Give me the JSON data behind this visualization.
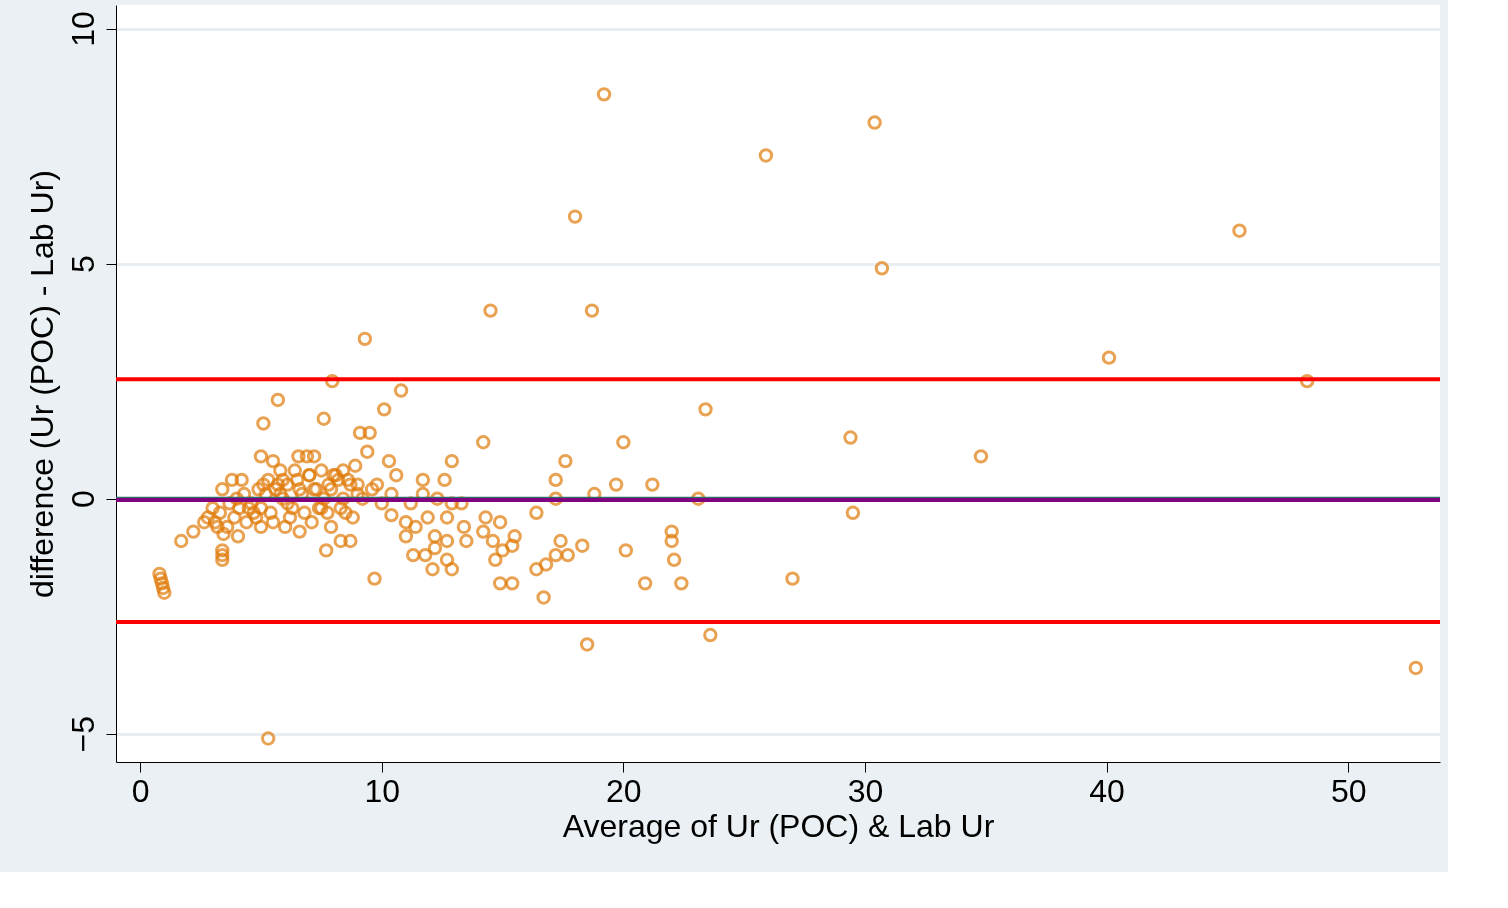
{
  "chart_data": {
    "type": "scatter",
    "xlabel": "Average of Ur (POC) & Lab Ur",
    "ylabel": "difference (Ur (POC) - Lab Ur)",
    "series": [
      {
        "color": "#e07b0a",
        "marker": "circle",
        "x": [
          19.2,
          30.4,
          25.9,
          18.0,
          45.5,
          30.7,
          14.5,
          18.7,
          9.3,
          40.1,
          48.3,
          7.95,
          10.8,
          5.7,
          5.1,
          7.6,
          10.1,
          23.4,
          9.1,
          9.5,
          14.2,
          20.0,
          29.4,
          34.8,
          17.6,
          12.9,
          10.3,
          10.6,
          17.2,
          19.7,
          21.2,
          11.7,
          12.6,
          18.8,
          17.2,
          23.1,
          16.4,
          29.5,
          22.0,
          22.0,
          22.1,
          20.1,
          18.3,
          17.4,
          17.2,
          17.7,
          16.8,
          16.4,
          16.7,
          20.9,
          22.4,
          27.0,
          23.6,
          18.5,
          52.8,
          5.3,
          9.7,
          7.7,
          8.3,
          8.7,
          14.3,
          14.9,
          14.2,
          13.4,
          13.5,
          15.5,
          15.4,
          14.7,
          15.0,
          14.6,
          14.9,
          15.4,
          12.1,
          11.3,
          12.9,
          12.7,
          11.8,
          12.2,
          12.7,
          11.0,
          12.2,
          13.3,
          12.7,
          10.4,
          11.0,
          11.4,
          11.2,
          11.7,
          12.3,
          12.9,
          11.9,
          0.8,
          0.85,
          0.9,
          0.95,
          1.0,
          3.4,
          3.4,
          3.4,
          1.7,
          2.2,
          2.65,
          3.0,
          3.4,
          3.8,
          4.2,
          5.0,
          5.5,
          5.8,
          6.55,
          7.2,
          6.9,
          8.4,
          8.9,
          9.4,
          9.6,
          10.4,
          7.75,
          7.9,
          6.6,
          6.0,
          4.05,
          3.45,
          2.8,
          3.1,
          3.3,
          3.6,
          3.9,
          4.1,
          4.4,
          4.6,
          4.8,
          5.0,
          5.2,
          5.4,
          5.6,
          5.9,
          6.1,
          6.3,
          6.5,
          6.7,
          7.0,
          7.3,
          7.5,
          7.8,
          8.1,
          8.4,
          8.7,
          9.0,
          3.2,
          3.7,
          4.3,
          4.7,
          5.1,
          5.5,
          5.9,
          6.2,
          6.6,
          7.1,
          7.4,
          7.9,
          8.3,
          8.6,
          9.2,
          4.0,
          4.5,
          4.9,
          5.3,
          5.8,
          6.4,
          6.8,
          7.2,
          7.6,
          8.0,
          8.5,
          9.0,
          9.8,
          10.0,
          5.0,
          5.7,
          6.1,
          7.0,
          7.5,
          8.2,
          8.8
        ],
        "values": [
          8.6,
          8.0,
          7.3,
          6.0,
          5.7,
          4.9,
          4.0,
          4.0,
          3.4,
          3.0,
          2.5,
          2.5,
          2.3,
          2.1,
          1.6,
          1.7,
          1.9,
          1.9,
          1.4,
          1.4,
          1.2,
          1.2,
          1.3,
          0.9,
          0.8,
          0.8,
          0.8,
          0.5,
          0.4,
          0.3,
          0.3,
          0.4,
          0.4,
          0.1,
          0.0,
          0.0,
          -0.3,
          -0.3,
          -0.7,
          -0.9,
          -1.3,
          -1.1,
          -1.0,
          -0.9,
          -1.2,
          -1.2,
          -1.4,
          -1.5,
          -2.1,
          -1.8,
          -1.8,
          -1.7,
          -2.9,
          -3.1,
          -3.6,
          -5.1,
          -1.7,
          -1.1,
          -0.9,
          -0.9,
          -0.4,
          -0.5,
          -0.7,
          -0.6,
          -0.9,
          -0.8,
          -1.0,
          -1.3,
          -1.1,
          -0.9,
          -1.8,
          -1.8,
          -1.5,
          -1.2,
          -1.5,
          -1.3,
          -1.2,
          -1.05,
          -0.9,
          -0.8,
          -0.8,
          -0.1,
          -0.4,
          -0.35,
          -0.5,
          -0.6,
          -0.1,
          0.1,
          0.0,
          -0.1,
          -0.4,
          -1.6,
          -1.7,
          -1.8,
          -1.9,
          -2.0,
          -1.1,
          -1.2,
          -1.3,
          -0.9,
          -0.7,
          -0.5,
          -0.2,
          0.2,
          0.4,
          0.4,
          0.9,
          0.8,
          0.6,
          0.9,
          0.9,
          0.9,
          0.6,
          0.7,
          1.0,
          0.2,
          0.1,
          -0.3,
          -0.6,
          -0.7,
          -0.6,
          -0.8,
          -0.75,
          -0.4,
          -0.5,
          -0.3,
          -0.6,
          -0.4,
          -0.2,
          -0.5,
          -0.1,
          -0.4,
          -0.2,
          0.1,
          -0.3,
          0.2,
          0.0,
          0.3,
          -0.2,
          0.4,
          0.1,
          0.5,
          0.2,
          0.6,
          0.3,
          0.5,
          0.0,
          0.3,
          0.1,
          -0.6,
          -0.1,
          0.1,
          -0.3,
          0.3,
          -0.5,
          0.4,
          -0.4,
          0.2,
          -0.5,
          -0.2,
          0.2,
          -0.2,
          0.4,
          0.0,
          0.0,
          -0.2,
          0.2,
          0.4,
          0.1,
          0.6,
          -0.3,
          0.2,
          0.0,
          0.5,
          -0.3,
          0.3,
          0.3,
          -0.1,
          -0.6,
          0.3,
          -0.1,
          0.5,
          -0.2,
          0.4,
          -0.4
        ]
      }
    ],
    "xlim": [
      -1,
      53.8
    ],
    "ylim": [
      -5.6,
      10.5
    ],
    "xticks": [
      0,
      10,
      20,
      30,
      40,
      50
    ],
    "yticks": [
      -5,
      0,
      5,
      10
    ],
    "grid": "y",
    "ref_lines": [
      {
        "axis": "y",
        "value": 0,
        "color": "#2e6e6a"
      },
      {
        "axis": "y",
        "value": -0.03,
        "color": "#800080"
      },
      {
        "axis": "y",
        "value": 2.54,
        "color": "#ff0000"
      },
      {
        "axis": "y",
        "value": -2.62,
        "color": "#ff0000"
      }
    ]
  }
}
